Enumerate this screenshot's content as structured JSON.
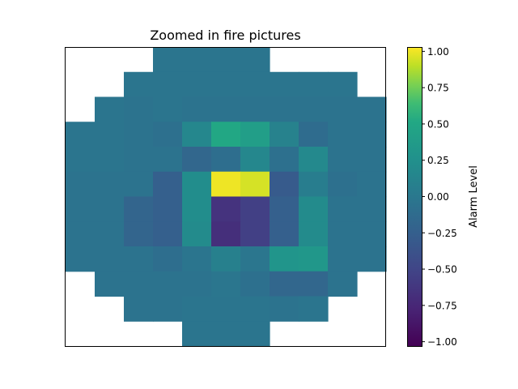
{
  "chart_data": {
    "type": "heatmap",
    "title": "Zoomed in fire pictures",
    "xlabel": "",
    "ylabel": "",
    "grid": false,
    "show_axis_ticks": false,
    "colorbar": {
      "label": "Alarm Level",
      "colormap": "viridis",
      "vmin": -1.03,
      "vmax": 1.03,
      "ticks": [
        1.0,
        0.75,
        0.5,
        0.25,
        0.0,
        -0.25,
        -0.5,
        -0.75,
        -1.0
      ],
      "tick_labels": [
        "1.00",
        "0.75",
        "0.50",
        "0.25",
        "0.00",
        "−0.25",
        "−0.50",
        "−0.75",
        "−1.00"
      ]
    },
    "rows": 12,
    "cols": 11,
    "values": [
      [
        null,
        null,
        null,
        -0.03,
        -0.03,
        -0.03,
        -0.03,
        null,
        null,
        null,
        null
      ],
      [
        null,
        null,
        -0.03,
        -0.03,
        -0.03,
        -0.03,
        -0.03,
        -0.03,
        -0.03,
        -0.03,
        null
      ],
      [
        null,
        -0.03,
        -0.05,
        -0.03,
        -0.05,
        -0.05,
        -0.05,
        -0.05,
        -0.05,
        -0.05,
        -0.05
      ],
      [
        -0.03,
        -0.03,
        -0.05,
        -0.08,
        0.15,
        0.5,
        0.4,
        0.1,
        -0.12,
        -0.05,
        -0.05
      ],
      [
        -0.03,
        -0.03,
        -0.05,
        -0.05,
        -0.18,
        -0.1,
        0.15,
        -0.08,
        0.18,
        -0.05,
        -0.05
      ],
      [
        -0.05,
        -0.05,
        -0.05,
        -0.25,
        0.22,
        1.0,
        0.95,
        -0.3,
        0.05,
        -0.08,
        -0.05
      ],
      [
        -0.05,
        -0.05,
        -0.2,
        -0.25,
        0.22,
        -0.65,
        -0.55,
        -0.25,
        0.2,
        -0.05,
        -0.05
      ],
      [
        -0.05,
        -0.05,
        -0.2,
        -0.25,
        0.2,
        -0.68,
        -0.55,
        -0.25,
        0.2,
        -0.05,
        -0.05
      ],
      [
        -0.05,
        -0.05,
        -0.05,
        -0.1,
        -0.03,
        0.08,
        -0.02,
        0.3,
        0.32,
        -0.05,
        -0.05
      ],
      [
        null,
        -0.05,
        -0.05,
        -0.05,
        -0.05,
        -0.02,
        -0.08,
        -0.18,
        -0.18,
        -0.05,
        null
      ],
      [
        null,
        null,
        -0.05,
        -0.05,
        -0.03,
        -0.03,
        -0.03,
        -0.05,
        -0.03,
        null,
        null
      ],
      [
        null,
        null,
        null,
        null,
        -0.03,
        -0.03,
        -0.03,
        null,
        null,
        null,
        null
      ]
    ]
  }
}
